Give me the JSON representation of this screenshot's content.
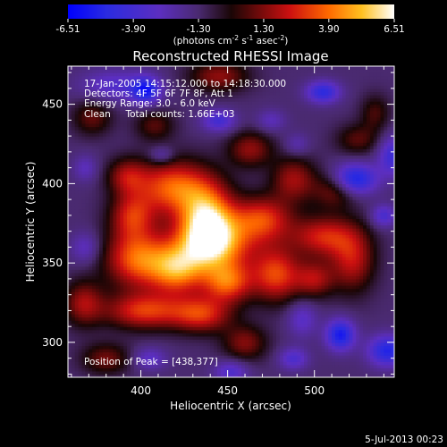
{
  "chart_data": {
    "type": "heatmap",
    "title": "Reconstructed RHESSI Image",
    "xlabel": "Heliocentric X (arcsec)",
    "ylabel": "Heliocentric Y (arcsec)",
    "xlim": [
      358,
      546
    ],
    "ylim": [
      278,
      474
    ],
    "x_ticks": [
      400,
      450,
      500
    ],
    "y_ticks": [
      300,
      350,
      400,
      450
    ],
    "colorbar": {
      "range": [
        -6.51,
        6.51
      ],
      "tick_labels": [
        "-6.51",
        "-3.90",
        "-1.30",
        "1.30",
        "3.90",
        "6.51"
      ],
      "units_text": "(photons cm",
      "units_sup1": "-2",
      "units_mid": " s",
      "units_sup2": "-1",
      "units_end": " asec",
      "units_sup3": "-2",
      "units_close": ")"
    },
    "annotations": [
      "17-Jan-2005 14:15:12.000 to 14:18:30.000",
      "Detectors: 4F 5F 6F 7F 8F, Att 1",
      "Energy Range: 3.0 - 6.0 keV",
      "Clean     Total counts: 1.66E+03"
    ],
    "peak_text": "Position of Peak = [438,377]",
    "peak_position": [
      438,
      377
    ],
    "timestamp": "5-Jul-2013 00:23",
    "blobs": [
      {
        "x": 438,
        "y": 377,
        "sx": 11,
        "sy": 16,
        "a": 6.4
      },
      {
        "x": 443,
        "y": 362,
        "sx": 16,
        "sy": 12,
        "a": 5.0
      },
      {
        "x": 398,
        "y": 353,
        "sx": 13,
        "sy": 13,
        "a": 5.0
      },
      {
        "x": 421,
        "y": 346,
        "sx": 11,
        "sy": 11,
        "a": 5.0
      },
      {
        "x": 450,
        "y": 338,
        "sx": 10,
        "sy": 9,
        "a": 4.6
      },
      {
        "x": 478,
        "y": 343,
        "sx": 10,
        "sy": 12,
        "a": 4.4
      },
      {
        "x": 402,
        "y": 320,
        "sx": 16,
        "sy": 8,
        "a": 4.2
      },
      {
        "x": 435,
        "y": 318,
        "sx": 12,
        "sy": 8,
        "a": 4.0
      },
      {
        "x": 418,
        "y": 398,
        "sx": 15,
        "sy": 12,
        "a": 4.8
      },
      {
        "x": 395,
        "y": 380,
        "sx": 9,
        "sy": 10,
        "a": 3.5
      },
      {
        "x": 392,
        "y": 405,
        "sx": 8,
        "sy": 8,
        "a": 2.8
      },
      {
        "x": 470,
        "y": 378,
        "sx": 12,
        "sy": 10,
        "a": 4.2
      },
      {
        "x": 505,
        "y": 367,
        "sx": 13,
        "sy": 9,
        "a": 3.8
      },
      {
        "x": 522,
        "y": 352,
        "sx": 9,
        "sy": 14,
        "a": 3.4
      },
      {
        "x": 500,
        "y": 340,
        "sx": 8,
        "sy": 8,
        "a": 3.0
      },
      {
        "x": 488,
        "y": 403,
        "sx": 9,
        "sy": 10,
        "a": 3.0
      },
      {
        "x": 512,
        "y": 396,
        "sx": 9,
        "sy": 8,
        "a": 2.6
      },
      {
        "x": 463,
        "y": 422,
        "sx": 9,
        "sy": 8,
        "a": 2.8
      },
      {
        "x": 445,
        "y": 468,
        "sx": 12,
        "sy": 7,
        "a": 2.8
      },
      {
        "x": 408,
        "y": 437,
        "sx": 8,
        "sy": 7,
        "a": 2.0
      },
      {
        "x": 372,
        "y": 442,
        "sx": 8,
        "sy": 8,
        "a": 2.2
      },
      {
        "x": 367,
        "y": 325,
        "sx": 8,
        "sy": 10,
        "a": 3.0
      },
      {
        "x": 460,
        "y": 300,
        "sx": 9,
        "sy": 8,
        "a": 2.6
      },
      {
        "x": 380,
        "y": 290,
        "sx": 10,
        "sy": 7,
        "a": 2.4
      },
      {
        "x": 525,
        "y": 428,
        "sx": 9,
        "sy": 7,
        "a": 2.0
      },
      {
        "x": 535,
        "y": 445,
        "sx": 6,
        "sy": 8,
        "a": 1.8
      },
      {
        "x": 385,
        "y": 462,
        "sx": 14,
        "sy": 7,
        "a": -2.2
      },
      {
        "x": 403,
        "y": 459,
        "sx": 6,
        "sy": 6,
        "a": -4.0
      },
      {
        "x": 445,
        "y": 440,
        "sx": 7,
        "sy": 5,
        "a": -2.8
      },
      {
        "x": 505,
        "y": 458,
        "sx": 7,
        "sy": 5,
        "a": -3.6
      },
      {
        "x": 523,
        "y": 403,
        "sx": 9,
        "sy": 7,
        "a": -4.6
      },
      {
        "x": 545,
        "y": 418,
        "sx": 6,
        "sy": 9,
        "a": -3.0
      },
      {
        "x": 540,
        "y": 380,
        "sx": 5,
        "sy": 5,
        "a": -2.6
      },
      {
        "x": 515,
        "y": 305,
        "sx": 6,
        "sy": 7,
        "a": -4.4
      },
      {
        "x": 542,
        "y": 295,
        "sx": 8,
        "sy": 7,
        "a": -4.0
      },
      {
        "x": 488,
        "y": 290,
        "sx": 6,
        "sy": 5,
        "a": -2.4
      },
      {
        "x": 493,
        "y": 315,
        "sx": 6,
        "sy": 8,
        "a": -2.0
      },
      {
        "x": 452,
        "y": 282,
        "sx": 7,
        "sy": 5,
        "a": -2.4
      },
      {
        "x": 405,
        "y": 290,
        "sx": 7,
        "sy": 5,
        "a": -2.0
      },
      {
        "x": 368,
        "y": 360,
        "sx": 6,
        "sy": 7,
        "a": -1.8
      },
      {
        "x": 368,
        "y": 410,
        "sx": 5,
        "sy": 6,
        "a": -1.6
      },
      {
        "x": 412,
        "y": 418,
        "sx": 5,
        "sy": 4,
        "a": -1.8
      },
      {
        "x": 475,
        "y": 440,
        "sx": 6,
        "sy": 5,
        "a": -1.6
      },
      {
        "x": 490,
        "y": 425,
        "sx": 5,
        "sy": 5,
        "a": -1.4
      }
    ]
  }
}
